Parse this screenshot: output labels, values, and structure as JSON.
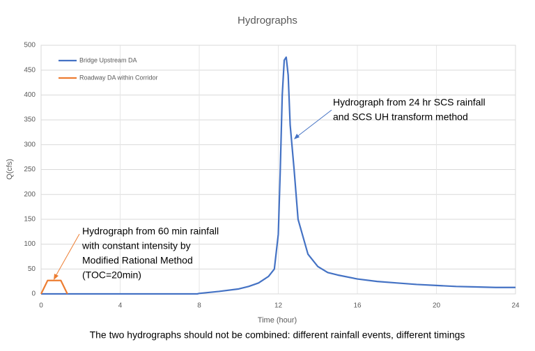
{
  "chart_data": {
    "type": "line",
    "title": "Hydrographs",
    "x_label": "Time (hour)",
    "y_label": "Q(cfs)",
    "caption": "The two hydrographs should not be combined: different rainfall events, different timings",
    "xlim": [
      0,
      24
    ],
    "xticks": [
      0,
      4,
      8,
      12,
      16,
      20,
      24
    ],
    "ylim": [
      0,
      500
    ],
    "yticks": [
      0,
      50,
      100,
      150,
      200,
      250,
      300,
      350,
      400,
      450,
      500
    ],
    "grid": true,
    "legend": "upper-left",
    "series": [
      {
        "name": "Bridge Upstream DA",
        "color": "#4472c4",
        "x": [
          0,
          7.9,
          8,
          9,
          10,
          10.5,
          11,
          11.5,
          11.8,
          12,
          12.1,
          12.2,
          12.3,
          12.4,
          12.5,
          12.6,
          12.8,
          13,
          13.5,
          14,
          14.5,
          15,
          16,
          17,
          18,
          19,
          20,
          21,
          22,
          23,
          24
        ],
        "values": [
          0,
          0,
          1,
          5,
          10,
          15,
          22,
          35,
          50,
          120,
          250,
          400,
          470,
          476,
          440,
          340,
          250,
          150,
          80,
          55,
          43,
          38,
          30,
          25,
          22,
          19,
          17,
          15,
          14,
          13,
          13
        ]
      },
      {
        "name": "Roadway DA within Corridor",
        "color": "#ed7d31",
        "x": [
          0,
          0.33,
          1,
          1.33
        ],
        "values": [
          0,
          27,
          27,
          0
        ]
      }
    ],
    "annotations": [
      {
        "lines": [
          "Hydrograph from 24 hr SCS rainfall",
          "and SCS UH transform method"
        ]
      },
      {
        "lines": [
          "Hydrograph from 60 min rainfall",
          "with constant intensity by",
          "Modified Rational Method",
          "(TOC=20min)"
        ]
      }
    ]
  }
}
